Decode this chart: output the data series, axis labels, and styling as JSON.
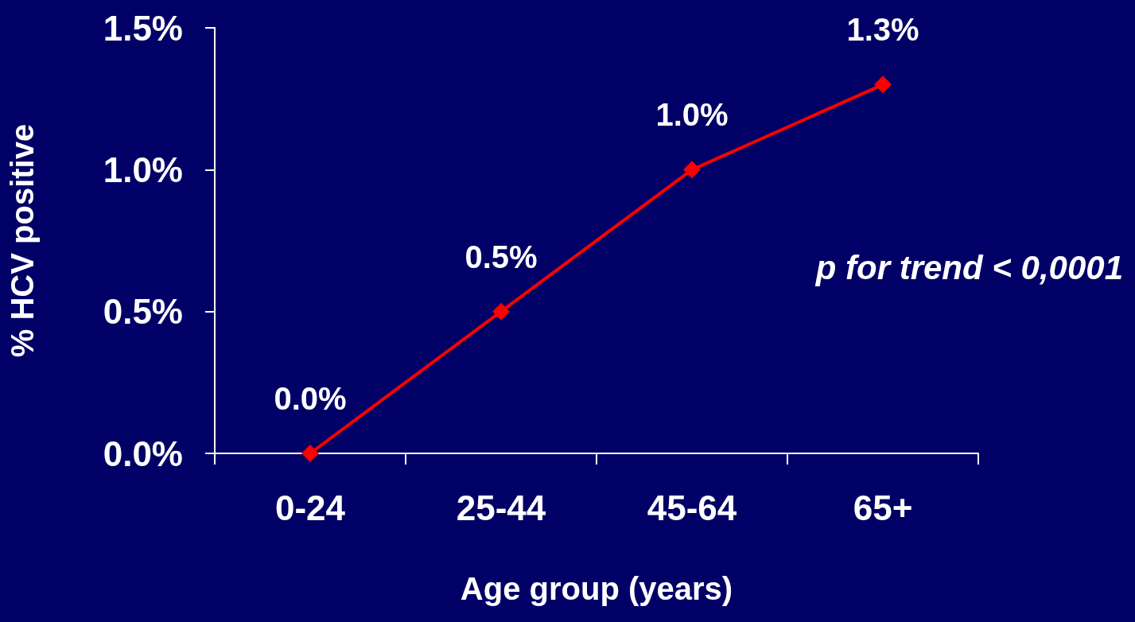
{
  "chart_data": {
    "type": "line",
    "xlabel": "Age group (years)",
    "ylabel": "% HCV positive",
    "categories": [
      "0-24",
      "25-44",
      "45-64",
      "65+"
    ],
    "series": [
      {
        "color": "#ff0000",
        "values": [
          0.0,
          0.5,
          1.0,
          1.3
        ],
        "value_labels": [
          "0.0%",
          "0.5%",
          "1.0%",
          "1.3%"
        ]
      }
    ],
    "ylim": [
      0,
      1.5
    ],
    "yticks": [
      {
        "value": 0,
        "label": "0.0%"
      },
      {
        "value": 0.5,
        "label": "0.5%"
      },
      {
        "value": 1.0,
        "label": "1.0%"
      },
      {
        "value": 1.5,
        "label": "1.5%"
      }
    ],
    "marker": "diamond",
    "line_style": "solid",
    "annotations": [
      "p for trend < 0,0001"
    ]
  }
}
